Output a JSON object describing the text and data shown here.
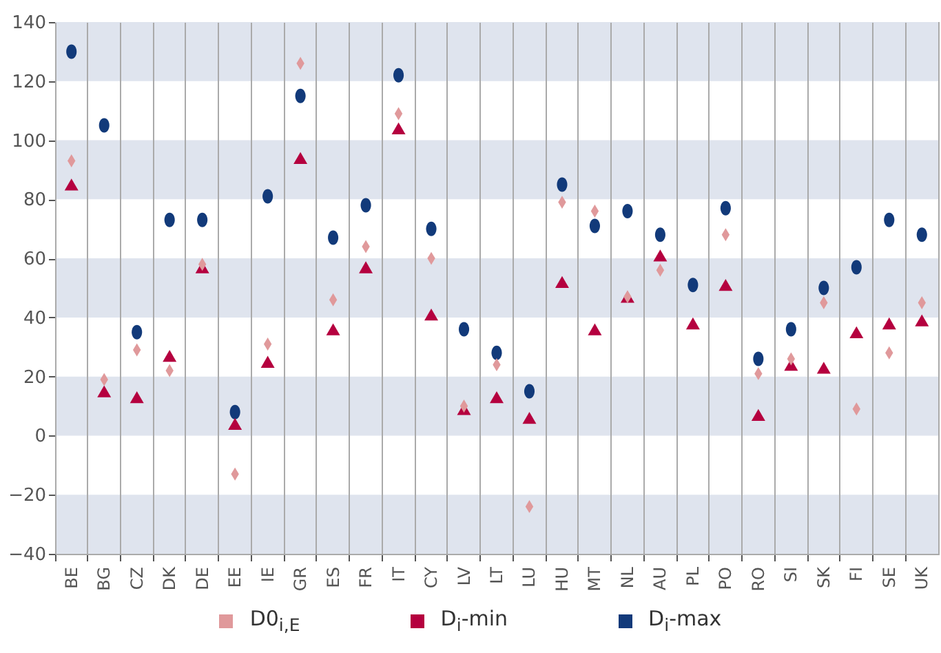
{
  "chart_data": {
    "type": "scatter",
    "categories": [
      "BE",
      "BG",
      "CZ",
      "DK",
      "DE",
      "EE",
      "IE",
      "GR",
      "ES",
      "FR",
      "IT",
      "CY",
      "LV",
      "LT",
      "LU",
      "HU",
      "MT",
      "NL",
      "AU",
      "PL",
      "PO",
      "RO",
      "SI",
      "SK",
      "FI",
      "SE",
      "UK"
    ],
    "series": [
      {
        "name": "D0$_{i,E}$",
        "color": "#e0999b",
        "marker": "diamond",
        "values": [
          93,
          19,
          29,
          22,
          58,
          -13,
          31,
          126,
          46,
          64,
          109,
          60,
          10,
          24,
          -24,
          79,
          76,
          47,
          56,
          null,
          68,
          21,
          26,
          45,
          9,
          28,
          45
        ]
      },
      {
        "name": "D$_{i}$-min",
        "color": "#b5003f",
        "marker": "triangle",
        "values": [
          85,
          15,
          13,
          27,
          57,
          4,
          25,
          94,
          36,
          57,
          104,
          41,
          9,
          13,
          6,
          52,
          36,
          47,
          61,
          38,
          51,
          7,
          24,
          23,
          35,
          38,
          39
        ]
      },
      {
        "name": "D$_{i}$-max",
        "color": "#123a7a",
        "marker": "circle",
        "values": [
          130,
          105,
          35,
          73,
          73,
          8,
          81,
          115,
          67,
          78,
          122,
          70,
          36,
          28,
          15,
          85,
          71,
          76,
          68,
          51,
          77,
          26,
          36,
          50,
          57,
          73,
          68
        ]
      }
    ],
    "ylim": [
      -40,
      140
    ],
    "yticks": [
      -40,
      -20,
      0,
      20,
      40,
      60,
      80,
      100,
      120,
      140
    ],
    "grid": true,
    "legend": "bottom"
  }
}
